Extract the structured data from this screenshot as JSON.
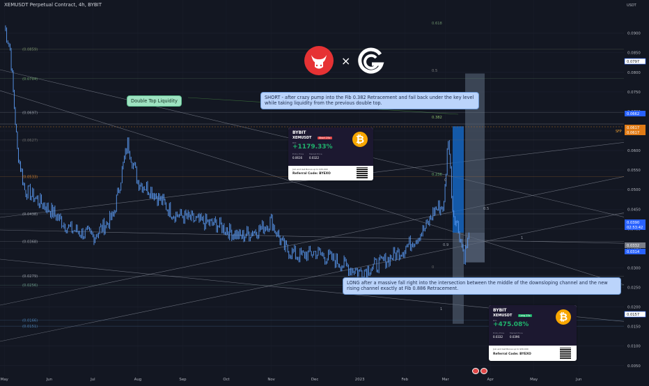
{
  "header": {
    "symbol": "XEMUSDT Perpetual Contract, 4h, BYBIT"
  },
  "price_axis": {
    "currency": "USDT",
    "labels": [
      "0.0900",
      "0.0850",
      "0.0800",
      "0.0750",
      "0.0700",
      "0.0650",
      "0.0600",
      "0.0550",
      "0.0500",
      "0.0450",
      "0.0400",
      "0.0350",
      "0.0300",
      "0.0250",
      "0.0200",
      "0.0150",
      "0.0100",
      "0.0050"
    ]
  },
  "time_axis": {
    "labels": [
      "May",
      "Jun",
      "Jul",
      "Aug",
      "Sep",
      "Oct",
      "Nov",
      "Dec",
      "2023",
      "Feb",
      "Mar",
      "Apr",
      "May",
      "Jun"
    ]
  },
  "badges": [
    {
      "text": "0.0797",
      "style": "outline"
    },
    {
      "text": "0.0662",
      "style": "blue"
    },
    {
      "text": "0.0617",
      "style": "orange"
    },
    {
      "text": "0.0617",
      "style": "orange2"
    },
    {
      "text": "0.0390",
      "style": "blue"
    },
    {
      "text": "02:53:42",
      "style": "blue"
    },
    {
      "text": "0.0332",
      "style": "grey"
    },
    {
      "text": "0.0314",
      "style": "blue"
    },
    {
      "text": "0.0157",
      "style": "outline"
    }
  ],
  "sfp_label": "SFP",
  "left_fib_labels": [
    "(0.0859)",
    "(0.0784)",
    "(0.0697)",
    "(0.0627)",
    "(0.0533)",
    "(0.0438)",
    "(0.0368)",
    "(0.0279)",
    "(0.0256)",
    "(0.0166)",
    "(0.0151)"
  ],
  "fib_labels": {
    "f618": "0.618",
    "f5": "0.5",
    "f382": "0.382",
    "f236": "0.236",
    "f0a": "0",
    "f0b": "0",
    "f05b": "0.5",
    "f09": "0.9",
    "f1a": "1",
    "f1b": "1",
    "f382b": "0.382"
  },
  "callouts": {
    "double_top": "Double Top Liquidity",
    "short": "SHORT - after crazy pump into the Fib 0.382 Retracement and fail back under the key level while taking liquidity from the previous double top.",
    "long": "LONG after a massive fall right into the intersection between the middle of the downsloping channel and the new rising channel exactly at Fib 0.886 Retracement."
  },
  "cards": [
    {
      "brand": "BYBIT",
      "tag": "Short 25x",
      "pair": "XEMUSDT",
      "pnl_label": "ROI",
      "pnl": "+1179.33%",
      "entry_label": "Entry Price",
      "entry": "0.0616",
      "exit_label": "Market Price",
      "exit": "0.0322",
      "referral_small": "Join and Get Bonus up to $30,000",
      "referral": "Referral Code: BYEXO"
    },
    {
      "brand": "BYBIT",
      "tag": "Long 25x",
      "pair": "XEMUSDT",
      "pnl_label": "ROI",
      "pnl": "+475.08%",
      "entry_label": "Entry Price",
      "entry": "0.0332",
      "exit_label": "Market Price",
      "exit": "0.0396",
      "referral_small": "Join and Get Bonus up to $30,000",
      "referral": "Referral Code: BYEXO"
    }
  ],
  "colors": {
    "background": "#131722",
    "candle": "#5b9cf6",
    "short_box": "#1565c0",
    "long_box": "#5d6b80",
    "callout_blue": "#bbd4fb",
    "callout_green": "#9ee2c1",
    "bull_logo": "#e63234"
  },
  "chart_data": {
    "type": "line",
    "title": "XEMUSDT Perpetual Contract, 4h, BYBIT",
    "xlabel": "",
    "ylabel": "",
    "ylim": [
      0.003,
      0.096
    ],
    "grid": true,
    "x": [
      "2022-05-01",
      "2022-05-05",
      "2022-05-10",
      "2022-05-15",
      "2022-06-01",
      "2022-06-15",
      "2022-07-01",
      "2022-07-15",
      "2022-07-25",
      "2022-08-01",
      "2022-08-10",
      "2022-08-25",
      "2022-09-10",
      "2022-09-25",
      "2022-10-10",
      "2022-10-25",
      "2022-11-01",
      "2022-11-10",
      "2022-11-20",
      "2022-12-01",
      "2022-12-15",
      "2022-12-25",
      "2023-01-01",
      "2023-01-15",
      "2023-02-01",
      "2023-02-15",
      "2023-02-22",
      "2023-02-28",
      "2023-03-03",
      "2023-03-06",
      "2023-03-10",
      "2023-03-14",
      "2023-03-18"
    ],
    "series": [
      {
        "values": [
          0.092,
          0.086,
          0.06,
          0.05,
          0.045,
          0.04,
          0.038,
          0.043,
          0.062,
          0.052,
          0.05,
          0.044,
          0.042,
          0.041,
          0.038,
          0.04,
          0.042,
          0.035,
          0.033,
          0.034,
          0.032,
          0.03,
          0.029,
          0.031,
          0.035,
          0.04,
          0.045,
          0.046,
          0.064,
          0.045,
          0.04,
          0.033,
          0.039
        ]
      }
    ]
  }
}
